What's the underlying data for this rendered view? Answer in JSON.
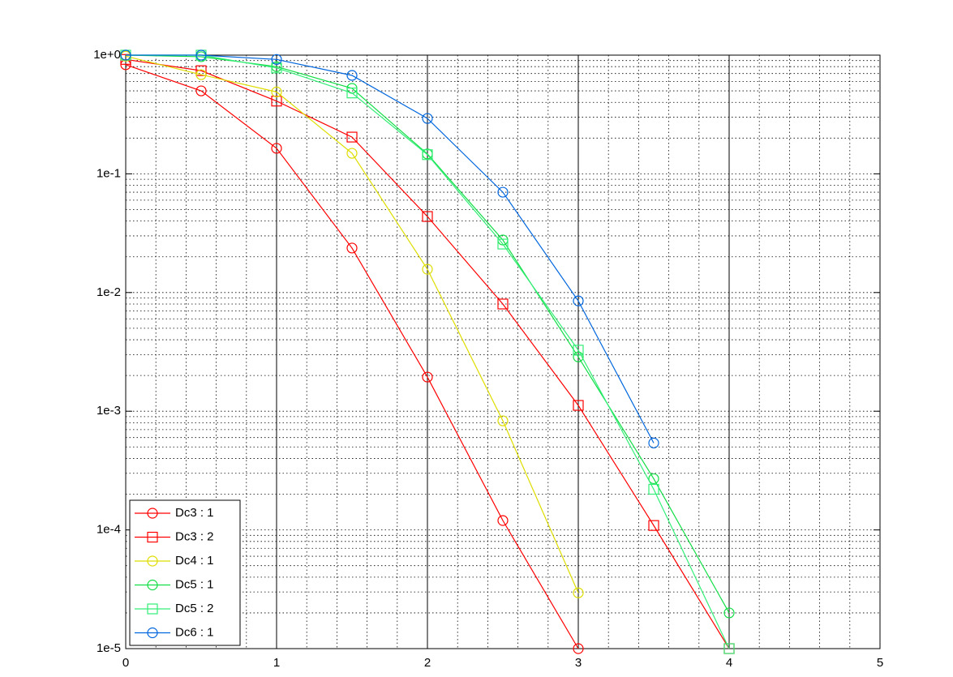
{
  "chart_data": {
    "type": "line",
    "log_y": true,
    "grid": true,
    "minor_grid": true,
    "legend": "lower left",
    "x": [
      0,
      0.5,
      1,
      1.5,
      2,
      2.5,
      3,
      3.5,
      4
    ],
    "xlim": [
      0,
      5
    ],
    "xticks": [
      0,
      1,
      2,
      3,
      4,
      5
    ],
    "ylim": [
      1e-05,
      1
    ],
    "yticks": [
      {
        "value": 1e-05,
        "label": "1e-5"
      },
      {
        "value": 0.0001,
        "label": "1e-4"
      },
      {
        "value": 0.001,
        "label": "1e-3"
      },
      {
        "value": 0.01,
        "label": "1e-2"
      },
      {
        "value": 0.1,
        "label": "1e-1"
      },
      {
        "value": 1,
        "label": "1e+0"
      }
    ],
    "series": [
      {
        "name": "Dc3 : 1",
        "color": "#ff0000",
        "marker": "circle",
        "values": [
          0.83,
          0.5,
          0.164,
          0.0237,
          0.00194,
          0.00012,
          1e-05,
          null,
          null
        ]
      },
      {
        "name": "Dc3 : 2",
        "color": "#ff0000",
        "marker": "square",
        "values": [
          0.92,
          0.74,
          0.41,
          0.204,
          0.0437,
          0.008,
          0.00112,
          0.000109,
          1e-05
        ]
      },
      {
        "name": "Dc4 : 1",
        "color": "#dddd00",
        "marker": "circle",
        "values": [
          0.98,
          0.685,
          0.49,
          0.149,
          0.0157,
          0.00083,
          2.95e-05,
          null,
          null
        ]
      },
      {
        "name": "Dc5 : 1",
        "color": "#11dd44",
        "marker": "circle",
        "values": [
          1,
          0.97,
          0.8,
          0.525,
          0.147,
          0.0277,
          0.00287,
          0.00027,
          2e-05
        ]
      },
      {
        "name": "Dc5 : 2",
        "color": "#33ee77",
        "marker": "square",
        "values": [
          1,
          1,
          0.78,
          0.48,
          0.145,
          0.0256,
          0.00327,
          0.00022,
          1e-05
        ]
      },
      {
        "name": "Dc6 : 1",
        "color": "#0066dd",
        "marker": "circle",
        "values": [
          1,
          1,
          0.92,
          0.675,
          0.293,
          0.07,
          0.0085,
          0.00054,
          null
        ]
      }
    ]
  }
}
